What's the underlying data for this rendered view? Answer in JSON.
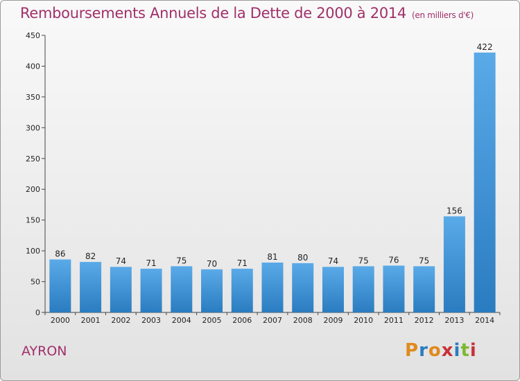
{
  "header": {
    "title": "Remboursements Annuels de la Dette de 2000 à 2014",
    "subtitle": "(en milliers d'€)"
  },
  "footer": {
    "city": "AYRON",
    "logo_text": "Proxiti"
  },
  "colors": {
    "title": "#a0306a",
    "bar_light": "#5aaae8",
    "bar_dark": "#2a7cc0",
    "logo_letters": [
      "#e08a1e",
      "#2a7cc0",
      "#e08a1e",
      "#c9313a",
      "#2a7cc0",
      "#7cb82f",
      "#c9313a"
    ]
  },
  "chart_data": {
    "type": "bar",
    "title": "Remboursements Annuels de la Dette de 2000 à 2014",
    "subtitle": "(en milliers d'€)",
    "xlabel": "",
    "ylabel": "",
    "categories": [
      "2000",
      "2001",
      "2002",
      "2003",
      "2004",
      "2005",
      "2006",
      "2007",
      "2008",
      "2009",
      "2010",
      "2011",
      "2012",
      "2013",
      "2014"
    ],
    "values": [
      86,
      82,
      74,
      71,
      75,
      70,
      71,
      81,
      80,
      74,
      75,
      76,
      75,
      156,
      422
    ],
    "ylim": [
      0,
      450
    ],
    "yticks": [
      0,
      50,
      100,
      150,
      200,
      250,
      300,
      350,
      400,
      450
    ],
    "grid": false,
    "legend": "none"
  }
}
